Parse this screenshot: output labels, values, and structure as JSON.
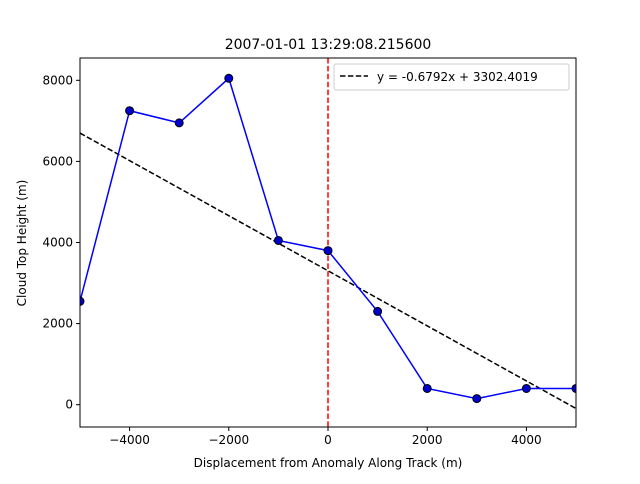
{
  "chart_data": {
    "type": "line",
    "title": "2007-01-01 13:29:08.215600",
    "xlabel": "Displacement from Anomaly Along Track (m)",
    "ylabel": "Cloud Top Height (m)",
    "xlim": [
      -5000,
      5000
    ],
    "ylim": [
      -550,
      8550
    ],
    "xticks": [
      -4000,
      -2000,
      0,
      2000,
      4000
    ],
    "yticks": [
      0,
      2000,
      4000,
      6000,
      8000
    ],
    "grid": false,
    "legend_position": "upper-right",
    "series": [
      {
        "style": "line-with-markers",
        "color": "#0000ff",
        "marker_color": "#0000cc",
        "x": [
          -5000,
          -4000,
          -3000,
          -2000,
          -1000,
          0,
          1000,
          2000,
          3000,
          4000,
          5000
        ],
        "y": [
          2550,
          7250,
          6950,
          8050,
          4050,
          3800,
          2300,
          400,
          150,
          400,
          400
        ]
      }
    ],
    "fit_line": {
      "name": "y = -0.6792x + 3302.4019",
      "slope": -0.6792,
      "intercept": 3302.4019,
      "color": "#000000",
      "style": "dashed"
    },
    "vertical_line": {
      "x": 0,
      "color": "#ff0000",
      "style": "dashed"
    }
  }
}
